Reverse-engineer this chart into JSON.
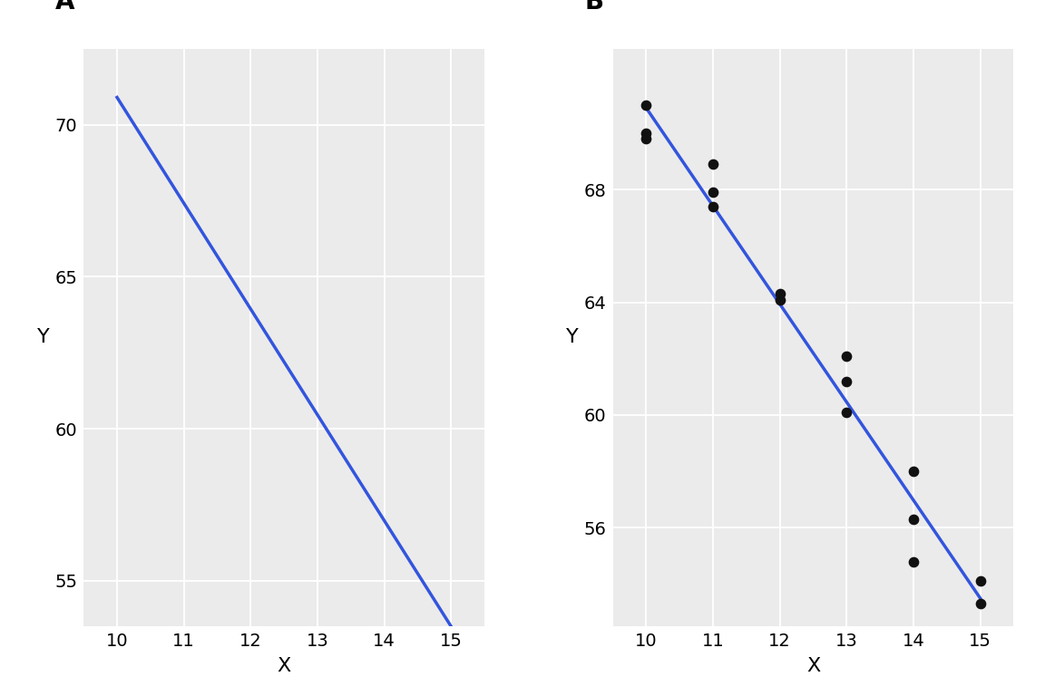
{
  "slope": -3.48,
  "intercept": 105.7,
  "x_range": [
    10,
    15
  ],
  "scatter_x": [
    10,
    10,
    10,
    11,
    11,
    11,
    12,
    12,
    13,
    13,
    13,
    14,
    14,
    14,
    15,
    15
  ],
  "scatter_y": [
    71.0,
    70.0,
    69.8,
    68.9,
    67.9,
    67.4,
    64.3,
    64.1,
    62.1,
    61.2,
    60.1,
    58.0,
    56.3,
    54.8,
    54.1,
    53.3
  ],
  "xlim": [
    9.5,
    15.5
  ],
  "ylim_A": [
    53.5,
    72.5
  ],
  "ylim_B": [
    52.5,
    73.0
  ],
  "yticks_A": [
    55,
    60,
    65,
    70
  ],
  "yticks_B": [
    56,
    60,
    64,
    68
  ],
  "xticks": [
    10,
    11,
    12,
    13,
    14,
    15
  ],
  "line_color": "#3355dd",
  "dot_color": "#111111",
  "bg_color": "#ebebeb",
  "grid_color": "#ffffff",
  "label_A": "A",
  "label_B": "B",
  "xlabel": "X",
  "ylabel": "Y",
  "line_width": 2.5,
  "dot_size": 55,
  "tick_labelsize": 14,
  "axis_labelsize": 16
}
